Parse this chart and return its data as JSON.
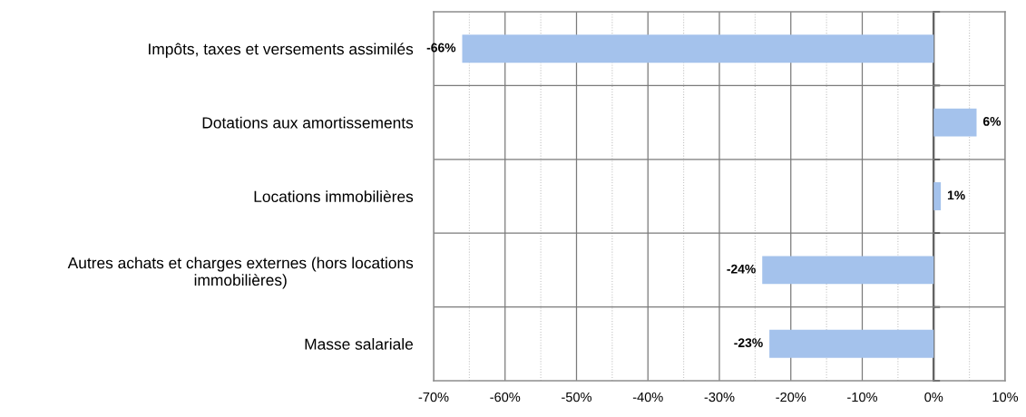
{
  "chart_data": {
    "type": "bar",
    "orientation": "horizontal",
    "categories": [
      "Impôts, taxes et versements assimilés",
      "Dotations aux amortissements",
      "Locations immobilières",
      "Autres achats et charges externes (hors locations\nimmobilières)",
      "Masse salariale"
    ],
    "values": [
      -66,
      6,
      1,
      -24,
      -23
    ],
    "color": "#a4c2ec",
    "value_labels": [
      "-66%",
      "6%",
      "1%",
      "-24%",
      "-23%"
    ],
    "xlim": [
      -70,
      10
    ],
    "xticks": [
      {
        "value": -70,
        "label": "-70%"
      },
      {
        "value": -60,
        "label": "-60%"
      },
      {
        "value": -50,
        "label": "-50%"
      },
      {
        "value": -40,
        "label": "-40%"
      },
      {
        "value": -30,
        "label": "-30%"
      },
      {
        "value": -20,
        "label": "-20%"
      },
      {
        "value": -10,
        "label": "-10%"
      },
      {
        "value": 0,
        "label": "0%"
      },
      {
        "value": 10,
        "label": "10%"
      }
    ],
    "grid": true
  }
}
